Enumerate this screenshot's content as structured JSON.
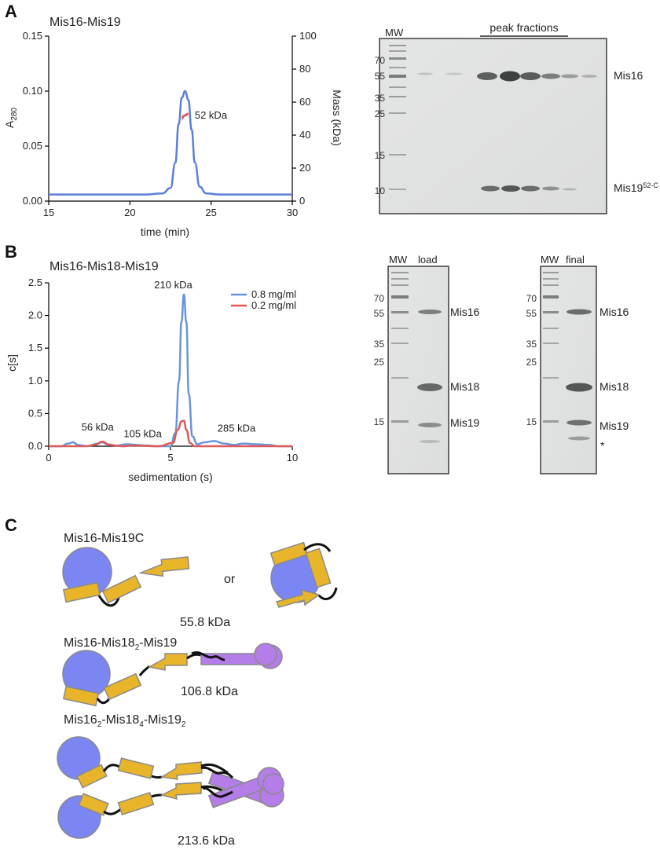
{
  "panels": {
    "a": "A",
    "b": "B",
    "c": "C"
  },
  "panelA": {
    "title": "Mis16-Mis19",
    "peak_label": "52 kDa",
    "gel": {
      "mw_label": "MW",
      "header": "peak fractions",
      "markers": [
        "70",
        "55",
        "35",
        "25",
        "15",
        "10"
      ],
      "band_labels": {
        "mis16": "Mis16",
        "mis19": "Mis19",
        "mis19_sup": "52-C"
      }
    }
  },
  "panelB": {
    "title": "Mis16-Mis18-Mis19",
    "annotations": [
      "210 kDa",
      "56 kDa",
      "105 kDa",
      "285 kDa"
    ],
    "gels": [
      {
        "mw_label": "MW",
        "lane_label": "load",
        "markers": [
          "70",
          "55",
          "35",
          "25",
          "15"
        ],
        "band_labels": [
          "Mis16",
          "Mis18",
          "Mis19"
        ],
        "asterisk": ""
      },
      {
        "mw_label": "MW",
        "lane_label": "final",
        "markers": [
          "70",
          "55",
          "35",
          "25",
          "15"
        ],
        "band_labels": [
          "Mis16",
          "Mis18",
          "Mis19"
        ],
        "asterisk": "*"
      }
    ]
  },
  "panelC": {
    "models": [
      {
        "name": "Mis16-Mis19C",
        "or_label": "or",
        "mass": "55.8 kDa"
      },
      {
        "name_parts": [
          "Mis16-Mis18",
          "2",
          "-Mis19"
        ],
        "mass": "106.8 kDa"
      },
      {
        "name_parts": [
          "Mis16",
          "2",
          "-Mis18",
          "4",
          "-Mis19",
          "2"
        ],
        "mass": "213.6 kDa"
      }
    ],
    "colors": {
      "circle": "#7b86f2",
      "rect": "#e8b52a",
      "mis18": "#b47de8",
      "outline": "#8a8a8a"
    }
  },
  "chart_data": [
    {
      "type": "line",
      "title": "Mis16-Mis19",
      "xlabel": "time (min)",
      "ylabel": "A280",
      "ylabel_main": "A",
      "ylabel_sub": "280",
      "y2label": "Mass (kDa)",
      "xlim": [
        15,
        30
      ],
      "ylim": [
        0,
        0.15
      ],
      "y2lim": [
        0,
        100
      ],
      "xticks": [
        "15",
        "20",
        "25",
        "30"
      ],
      "yticks": [
        "0.00",
        "0.05",
        "0.10",
        "0.15"
      ],
      "y2ticks": [
        "0",
        "20",
        "40",
        "60",
        "80",
        "100"
      ],
      "series": [
        {
          "color": "#5b7fd8",
          "x": [
            15,
            20,
            21,
            22,
            22.5,
            22.8,
            23.0,
            23.2,
            23.4,
            23.6,
            23.8,
            24.0,
            24.3,
            24.7,
            25.5,
            27,
            30
          ],
          "y": [
            0.006,
            0.006,
            0.006,
            0.007,
            0.012,
            0.035,
            0.07,
            0.094,
            0.1,
            0.092,
            0.065,
            0.035,
            0.013,
            0.007,
            0.006,
            0.006,
            0.006
          ]
        },
        {
          "color": "#e05a5a",
          "axis": "y2",
          "x": [
            23.2,
            23.3,
            23.4,
            23.5,
            23.6
          ],
          "y": [
            50,
            51.5,
            52,
            52.5,
            53
          ]
        }
      ],
      "annotations": [
        {
          "text": "52 kDa",
          "x": 23.8,
          "y": 52
        }
      ]
    },
    {
      "type": "line",
      "title": "Mis16-Mis18-Mis19",
      "xlabel": "sedimentation (s)",
      "ylabel": "c[s]",
      "xlim": [
        0,
        10
      ],
      "ylim": [
        0,
        2.5
      ],
      "xticks": [
        "0",
        "5",
        "10"
      ],
      "yticks": [
        "0.0",
        "0.5",
        "1.0",
        "1.5",
        "2.0",
        "2.5"
      ],
      "legend": "top-right",
      "series": [
        {
          "name": "0.8 mg/ml",
          "color": "#6a95dc",
          "x": [
            0,
            0.5,
            0.8,
            1.0,
            1.2,
            1.6,
            2.0,
            2.2,
            2.4,
            2.8,
            3.2,
            3.6,
            4.0,
            4.5,
            5.0,
            5.2,
            5.35,
            5.45,
            5.55,
            5.65,
            5.75,
            5.9,
            6.1,
            6.4,
            6.8,
            7.2,
            7.6,
            8.0,
            8.5,
            9.0,
            9.5,
            10
          ],
          "y": [
            0.0,
            0.0,
            0.04,
            0.06,
            0.02,
            0.0,
            0.04,
            0.06,
            0.03,
            0.01,
            0.03,
            0.02,
            0.01,
            0.0,
            0.0,
            0.2,
            1.0,
            1.9,
            2.32,
            1.9,
            0.8,
            0.15,
            0.03,
            0.06,
            0.08,
            0.04,
            0.02,
            0.04,
            0.03,
            0.02,
            0.0,
            0.0
          ]
        },
        {
          "name": "0.2 mg/ml",
          "color": "#e05a5a",
          "x": [
            0,
            1.5,
            1.9,
            2.2,
            2.5,
            3.0,
            3.5,
            4.5,
            5.1,
            5.3,
            5.45,
            5.55,
            5.65,
            5.8,
            6.0,
            6.5,
            7.5,
            10
          ],
          "y": [
            0.0,
            0.0,
            0.02,
            0.07,
            0.02,
            0.0,
            0.01,
            0.0,
            0.05,
            0.25,
            0.38,
            0.39,
            0.25,
            0.05,
            0.0,
            0.0,
            0.0,
            0.0
          ]
        }
      ],
      "annotations": [
        {
          "text": "210 kDa",
          "x": 5.5,
          "y": 2.32
        },
        {
          "text": "56 kDa",
          "x": 2.2,
          "y": 0.07
        },
        {
          "text": "105 kDa",
          "x": 3.6,
          "y": 0.02
        },
        {
          "text": "285 kDa",
          "x": 7.0,
          "y": 0.08
        }
      ]
    }
  ]
}
